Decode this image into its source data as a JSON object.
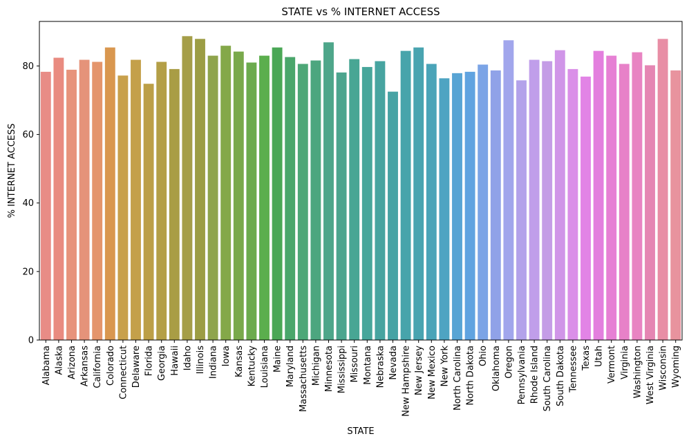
{
  "chart_data": {
    "type": "bar",
    "title": "STATE vs % INTERNET ACCESS",
    "xlabel": "STATE",
    "ylabel": "% INTERNET ACCESS",
    "ylim": [
      0,
      93
    ],
    "yticks": [
      0,
      20,
      40,
      60,
      80
    ],
    "grid": false,
    "categories": [
      "Alabama",
      "Alaska",
      "Arizona",
      "Arkansas",
      "California",
      "Colorado",
      "Connecticut",
      "Delaware",
      "Florida",
      "Georgia",
      "Hawaii",
      "Idaho",
      "Illinois",
      "Indiana",
      "Iowa",
      "Kansas",
      "Kentucky",
      "Louisiana",
      "Maine",
      "Maryland",
      "Massachusetts",
      "Michigan",
      "Minnesota",
      "Mississippi",
      "Missouri",
      "Montana",
      "Nebraska",
      "Nevada",
      "New Hampshire",
      "New Jersey",
      "New Mexico",
      "New York",
      "North Carolina",
      "North Dakota",
      "Ohio",
      "Oklahoma",
      "Oregon",
      "Pennsylvania",
      "Rhode Island",
      "South Carolina",
      "South Dakota",
      "Tennessee",
      "Texas",
      "Utah",
      "Vermont",
      "Virginia",
      "Washington",
      "West Virginia",
      "Wisconsin",
      "Wyoming"
    ],
    "values": [
      78.3,
      82.4,
      78.9,
      81.8,
      81.2,
      85.4,
      77.2,
      81.8,
      74.8,
      81.2,
      79.1,
      88.7,
      87.9,
      83.0,
      85.9,
      84.2,
      81.0,
      83.0,
      85.4,
      82.6,
      80.6,
      81.6,
      86.9,
      78.1,
      82.0,
      79.7,
      81.4,
      72.5,
      84.4,
      85.4,
      80.6,
      76.4,
      77.9,
      78.3,
      80.4,
      78.7,
      87.5,
      75.8,
      81.8,
      81.4,
      84.6,
      79.1,
      76.9,
      84.4,
      83.0,
      80.6,
      84.0,
      80.2,
      87.9,
      78.7
    ],
    "colors": [
      "#e88c86",
      "#e98b80",
      "#e7937b",
      "#e5937a",
      "#e4956c",
      "#d9974f",
      "#c8a04c",
      "#c4a04a",
      "#bc9f47",
      "#b49f47",
      "#a99d45",
      "#a59e48",
      "#9c9d44",
      "#8fa44c",
      "#84a849",
      "#79a94b",
      "#6cab4e",
      "#5bae4d",
      "#4aa756",
      "#4aa66b",
      "#4da777",
      "#4ca67f",
      "#4ea68a",
      "#4ca58e",
      "#48a694",
      "#47a69b",
      "#47a4a0",
      "#47a3a4",
      "#47a4ab",
      "#49a4b0",
      "#4aa4b8",
      "#4ea4c2",
      "#58a4d4",
      "#60a3e0",
      "#7ba4e6",
      "#90a2e8",
      "#a1a6ec",
      "#b3a2ea",
      "#c09eea",
      "#c49ce6",
      "#d095e8",
      "#da8fe8",
      "#e284e6",
      "#e37fde",
      "#e680d4",
      "#e781c8",
      "#e884c2",
      "#e586b3",
      "#e88ea5",
      "#e8939e"
    ]
  }
}
